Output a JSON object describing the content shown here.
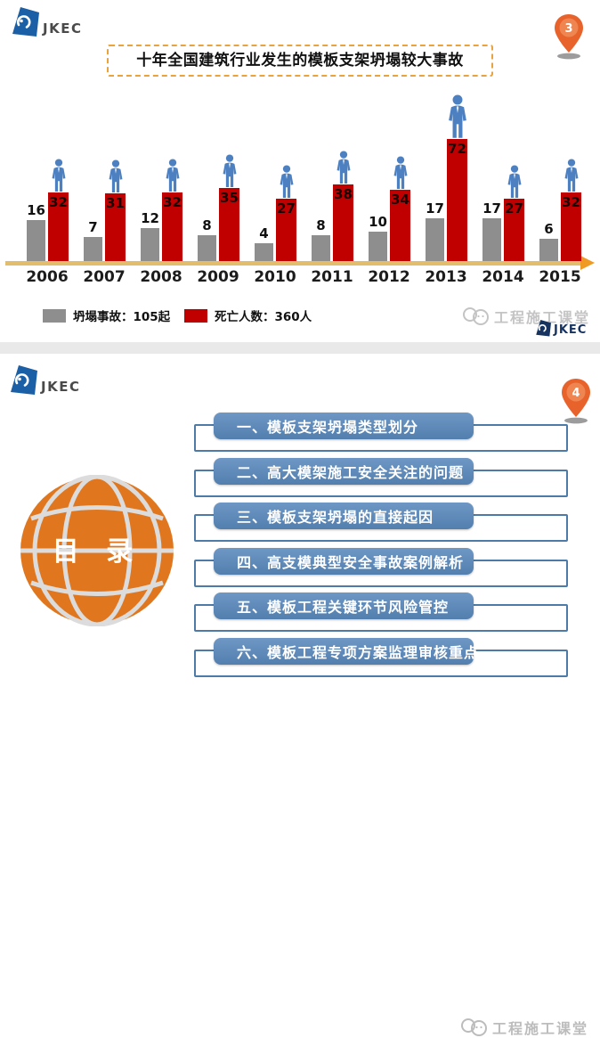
{
  "brand": {
    "logo_text": "JKEC",
    "logo_blue": "#1b5fa6",
    "footer_logo_text": "JKEC"
  },
  "slide1": {
    "page_badge": "3",
    "title": "十年全国建筑行业发生的模板支架坍塌较大事故",
    "watermark": "工程施工课堂"
  },
  "chart_data": {
    "type": "bar",
    "title": "十年全国建筑行业发生的模板支架坍塌较大事故",
    "categories": [
      "2006",
      "2007",
      "2008",
      "2009",
      "2010",
      "2011",
      "2012",
      "2013",
      "2014",
      "2015"
    ],
    "series": [
      {
        "name": "坍塌事故",
        "color": "#8e8e8e",
        "values": [
          16,
          7,
          12,
          8,
          4,
          8,
          10,
          17,
          17,
          6
        ],
        "total_label": "105起"
      },
      {
        "name": "死亡人数",
        "color": "#c00000",
        "values": [
          32,
          31,
          32,
          35,
          27,
          38,
          34,
          72,
          27,
          32
        ],
        "total_label": "360人"
      }
    ],
    "legend": [
      {
        "label": "坍塌事故：105起",
        "color": "#8e8e8e"
      },
      {
        "label": "死亡人数：360人",
        "color": "#c00000"
      }
    ],
    "data_labels": true,
    "legend_position": "bottom",
    "axis": {
      "x_line_color": "#e2bd6c",
      "arrow_color": "#ee9a23",
      "gridlines": false
    }
  },
  "slide2": {
    "page_badge": "4",
    "toc_title": "目 录",
    "toc_colors": {
      "bar_blue": "#5d8aba",
      "outline_blue": "#4d7aa6",
      "globe_orange": "#e0771f"
    },
    "items": [
      {
        "label": "一、模板支架坍塌类型划分"
      },
      {
        "label": "二、高大模架施工安全关注的问题"
      },
      {
        "label": "三、模板支架坍塌的直接起因"
      },
      {
        "label": "四、高支模典型安全事故案例解析"
      },
      {
        "label": "五、模板工程关键环节风险管控"
      },
      {
        "label": "六、模板工程专项方案监理审核重点"
      }
    ],
    "watermark": "工程施工课堂"
  }
}
